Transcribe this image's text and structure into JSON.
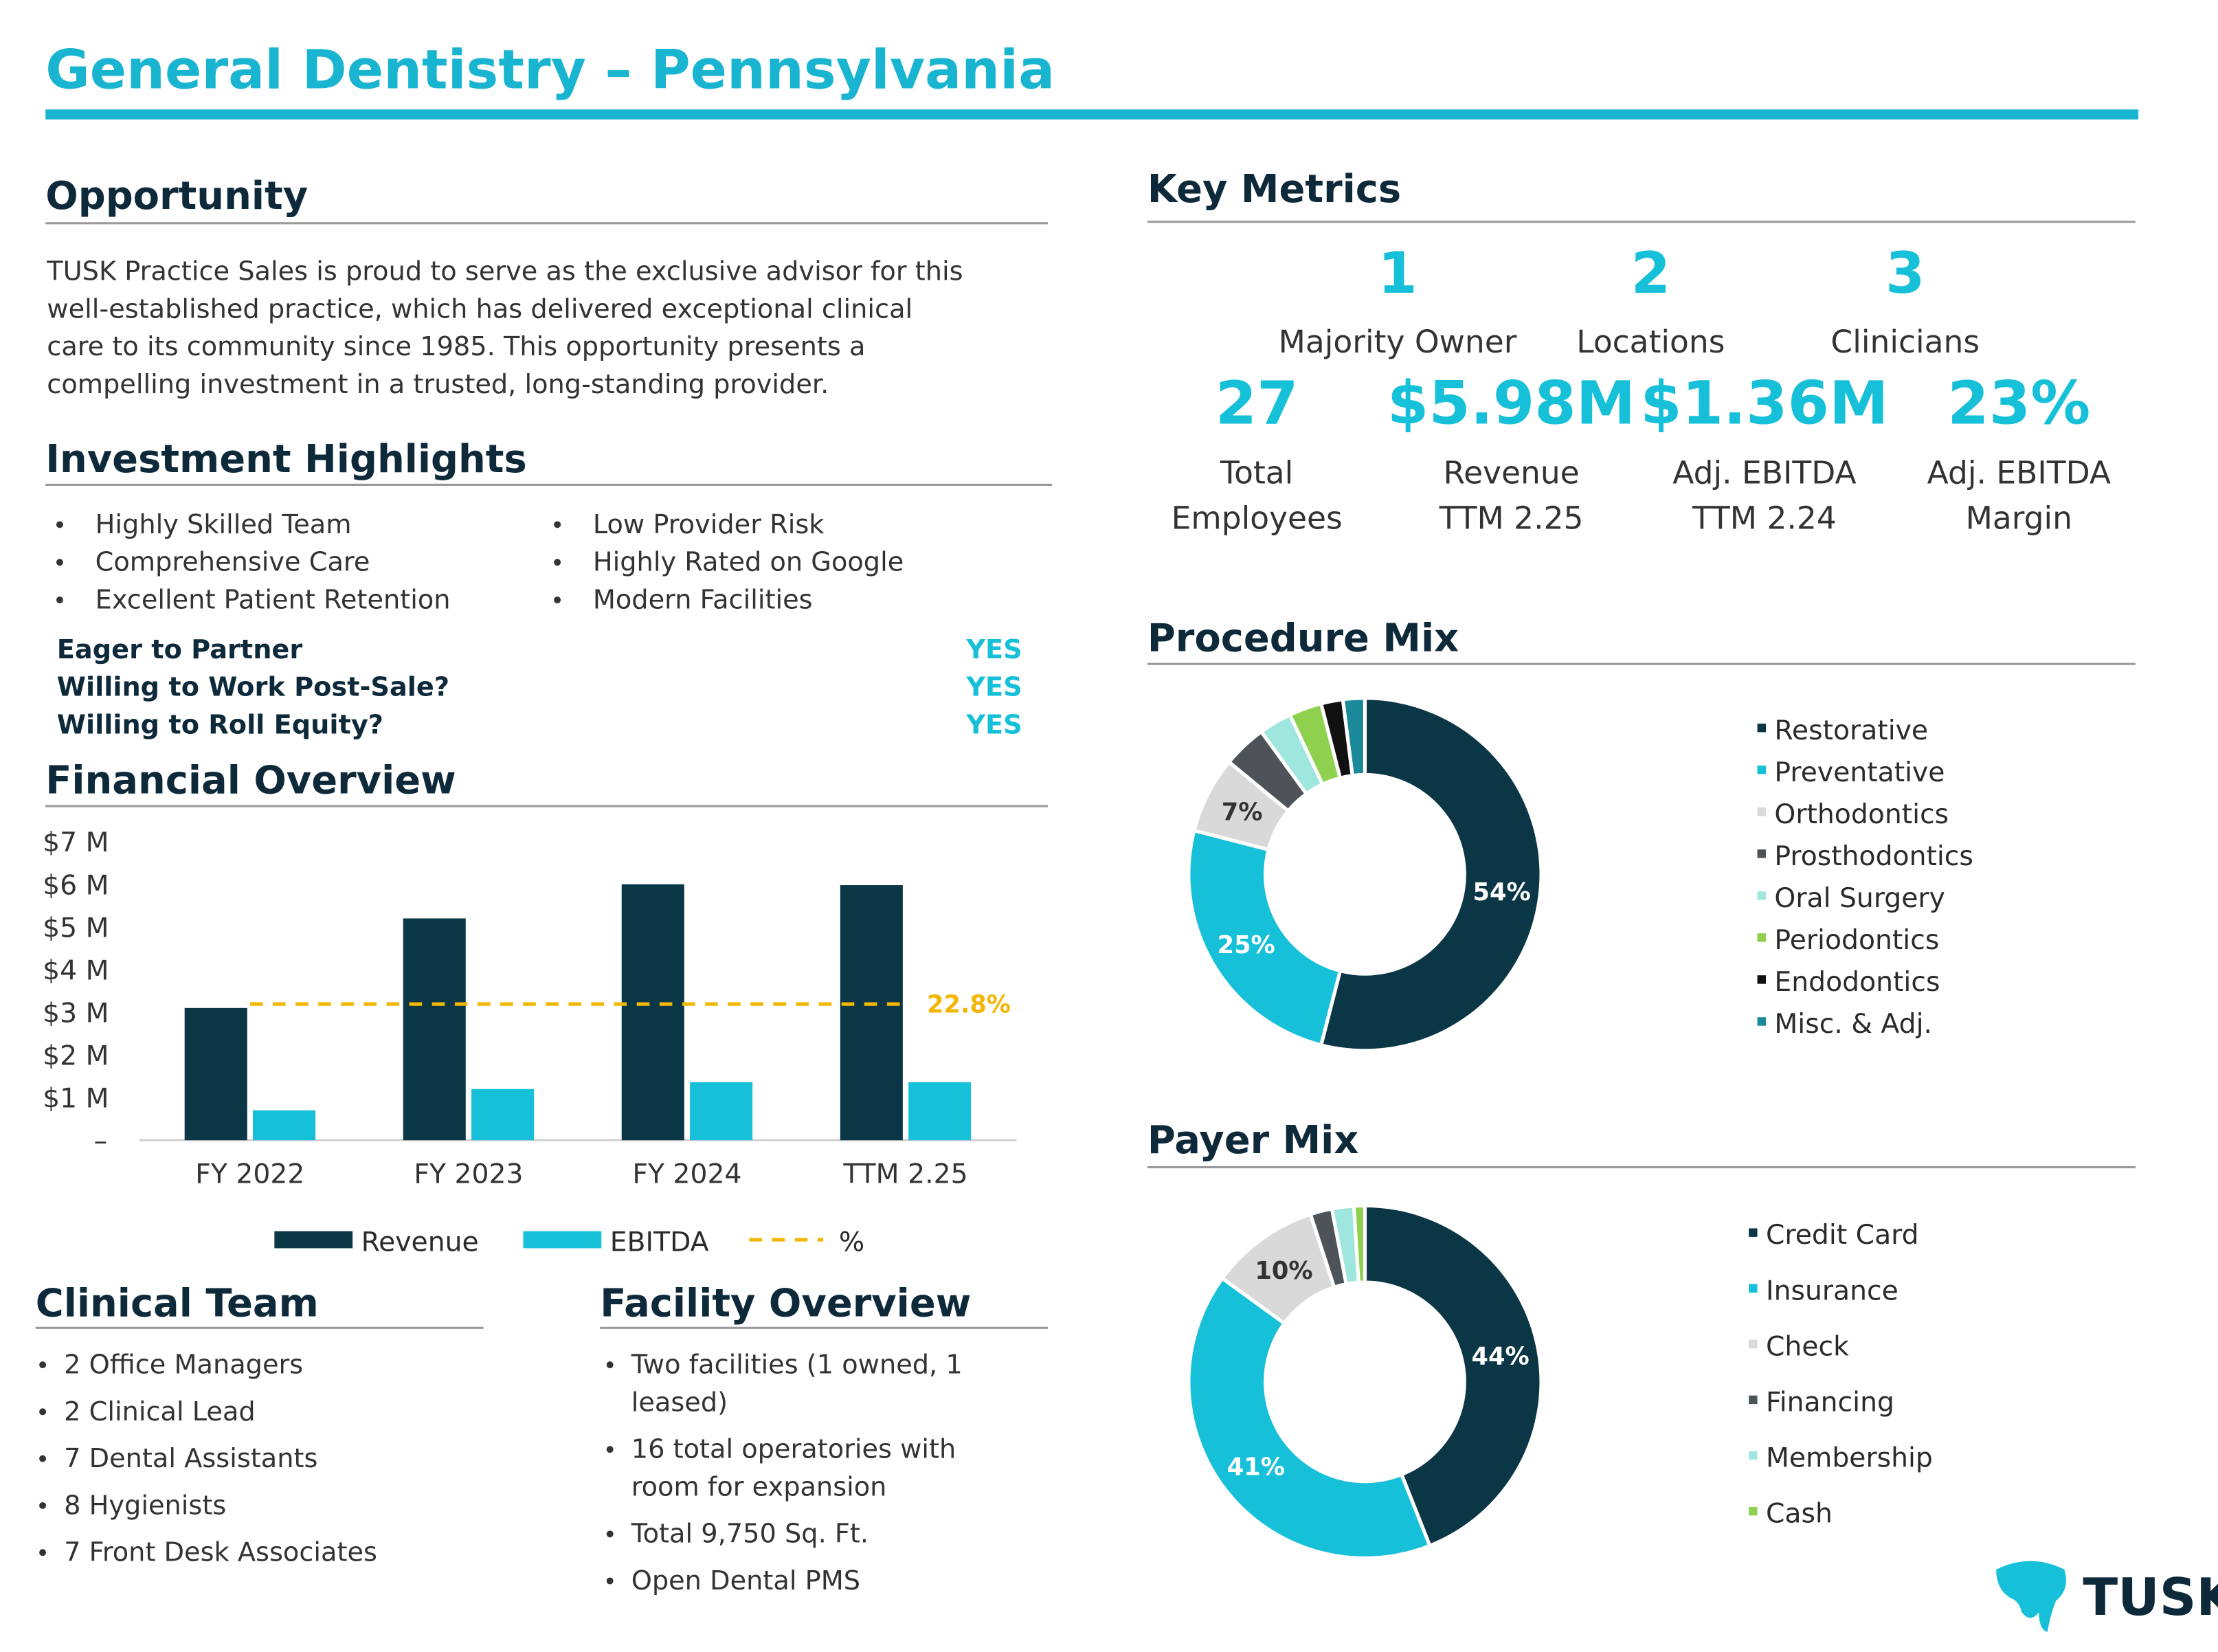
{
  "header": {
    "title": "General Dentistry – Pennsylvania"
  },
  "opportunity": {
    "title": "Opportunity",
    "lines": [
      "TUSK Practice Sales is proud to serve as the exclusive advisor for this",
      "well-established practice, which has delivered exceptional clinical",
      "care to its community since 1985. This opportunity presents a",
      "compelling investment in a trusted, long-standing provider."
    ]
  },
  "investment_highlights": {
    "title": "Investment Highlights",
    "left": [
      "Highly Skilled Team",
      "Comprehensive Care",
      "Excellent Patient Retention"
    ],
    "right": [
      "Low Provider Risk",
      "Highly Rated on Google",
      "Modern Facilities"
    ],
    "questions": [
      {
        "question": "Eager to Partner",
        "answer": "YES"
      },
      {
        "question": "Willing to Work Post-Sale?",
        "answer": "YES"
      },
      {
        "question": "Willing to Roll Equity?",
        "answer": "YES"
      }
    ]
  },
  "financial_overview": {
    "title": "Financial Overview"
  },
  "clinical_team": {
    "title": "Clinical Team",
    "items": [
      "2 Office Managers",
      "2 Clinical Lead",
      "7 Dental Assistants",
      "8 Hygienists",
      "7 Front Desk Associates"
    ]
  },
  "facility_overview": {
    "title": "Facility Overview",
    "items": [
      [
        "Two facilities (1 owned, 1",
        "leased)"
      ],
      [
        "16 total operatories with",
        "room for expansion"
      ],
      [
        "Total 9,750 Sq. Ft."
      ],
      [
        "Open Dental PMS"
      ]
    ]
  },
  "key_metrics": {
    "title": "Key Metrics",
    "top": [
      {
        "value": "1",
        "label": [
          "Majority Owner"
        ]
      },
      {
        "value": "2",
        "label": [
          "Locations"
        ]
      },
      {
        "value": "3",
        "label": [
          "Clinicians"
        ]
      }
    ],
    "bottom": [
      {
        "value": "27",
        "label": [
          "Total",
          "Employees"
        ]
      },
      {
        "value": "$5.98M",
        "label": [
          "Revenue",
          "TTM 2.25"
        ]
      },
      {
        "value": "$1.36M",
        "label": [
          "Adj. EBITDA",
          "TTM 2.24"
        ]
      },
      {
        "value": "23%",
        "label": [
          "Adj. EBITDA",
          "Margin"
        ]
      }
    ]
  },
  "procedure_mix": {
    "title": "Procedure Mix"
  },
  "payer_mix": {
    "title": "Payer Mix"
  },
  "logo": {
    "text": "TUSK"
  },
  "chart_data": [
    {
      "type": "bar",
      "categories": [
        "FY 2022",
        "FY 2023",
        "FY 2024",
        "TTM 2.25"
      ],
      "series": [
        {
          "name": "Revenue",
          "color": "#0b3646",
          "values": [
            3.1,
            5.2,
            6.0,
            5.98
          ]
        },
        {
          "name": "EBITDA",
          "color": "#17c0d9",
          "values": [
            0.7,
            1.2,
            1.36,
            1.36
          ]
        },
        {
          "name": "%",
          "color": "#f2b705",
          "axis": "y2",
          "line": "dashed",
          "values": [
            22.8,
            22.8,
            22.8,
            22.8
          ],
          "value_labels": [
            null,
            null,
            null,
            "22.8%"
          ]
        }
      ],
      "ylim": [
        0,
        7
      ],
      "yticks": [
        {
          "value": 0,
          "label": "–"
        },
        {
          "value": 1,
          "label": "$1 M"
        },
        {
          "value": 2,
          "label": "$2 M"
        },
        {
          "value": 3,
          "label": "$3 M"
        },
        {
          "value": 4,
          "label": "$4 M"
        },
        {
          "value": 5,
          "label": "$5 M"
        },
        {
          "value": 6,
          "label": "$6 M"
        },
        {
          "value": 7,
          "label": "$7 M"
        }
      ],
      "y2lim": [
        0,
        50
      ],
      "legend": "bottom"
    },
    {
      "type": "donut",
      "categories": [
        "Restorative",
        "Preventative",
        "Orthodontics",
        "Prosthodontics",
        "Oral Surgery",
        "Periodontics",
        "Endodontics",
        "Misc. & Adj."
      ],
      "values": [
        54,
        25,
        7,
        4,
        3,
        3,
        2,
        2
      ],
      "value_labels": [
        "54%",
        "25%",
        "7%",
        null,
        null,
        null,
        null,
        null
      ],
      "colors": [
        "#0b3646",
        "#17c0d9",
        "#d9d9d9",
        "#4d5358",
        "#9fe6df",
        "#8fd14f",
        "#111111",
        "#1a8a9a"
      ],
      "legend": "right"
    },
    {
      "type": "donut",
      "categories": [
        "Credit Card",
        "Insurance",
        "Check",
        "Financing",
        "Membership",
        "Cash"
      ],
      "values": [
        44,
        41,
        10,
        2,
        2,
        1
      ],
      "value_labels": [
        "44%",
        "41%",
        "10%",
        null,
        null,
        null
      ],
      "colors": [
        "#0b3646",
        "#17c0d9",
        "#d9d9d9",
        "#4d5358",
        "#9fe6df",
        "#8fd14f"
      ],
      "legend": "right"
    }
  ]
}
